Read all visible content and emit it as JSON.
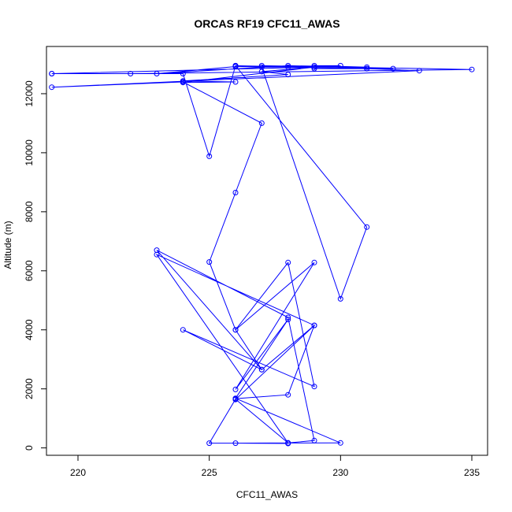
{
  "chart_data": {
    "type": "line",
    "title": "ORCAS RF19 CFC11_AWAS",
    "xlabel": "CFC11_AWAS",
    "ylabel": "Altitude (m)",
    "xlim": [
      218.8,
      235.6
    ],
    "ylim": [
      -250,
      13600
    ],
    "xticks": [
      220,
      225,
      230,
      235
    ],
    "yticks": [
      0,
      2000,
      4000,
      6000,
      8000,
      10000,
      12000
    ],
    "grid": false,
    "colors": {
      "series": "#0000ff",
      "axis": "#000000",
      "background": "#ffffff"
    },
    "series": [
      {
        "marker": "open-circle",
        "x": [
          228,
          226,
          228,
          226,
          225,
          230,
          226,
          228,
          226,
          229,
          226,
          228,
          229,
          224,
          227,
          223,
          228,
          229,
          228,
          223,
          229,
          226,
          226,
          228,
          229,
          227,
          226,
          225,
          226,
          227,
          224,
          219,
          233,
          231,
          229,
          231,
          226,
          228,
          227,
          235,
          222,
          219,
          229,
          224,
          226,
          224,
          228,
          227,
          229,
          226,
          232,
          226,
          223,
          228,
          231,
          229,
          230,
          227,
          230,
          231,
          226,
          225,
          224,
          219
        ],
        "y": [
          150,
          160,
          170,
          1650,
          160,
          170,
          1680,
          4350,
          1980,
          6280,
          4000,
          6280,
          2080,
          4000,
          2650,
          6700,
          4420,
          250,
          170,
          6550,
          4150,
          1640,
          1670,
          1800,
          4150,
          2650,
          4000,
          6300,
          8650,
          11000,
          12400,
          12220,
          12780,
          12850,
          12850,
          12850,
          12950,
          12900,
          12950,
          12820,
          12680,
          12680,
          12900,
          12380,
          12400,
          12430,
          12650,
          12750,
          12900,
          12920,
          12850,
          12920,
          12680,
          12950,
          12900,
          12950,
          12950,
          12900,
          5050,
          7480,
          12950,
          9880,
          12680,
          12680
        ]
      }
    ]
  }
}
